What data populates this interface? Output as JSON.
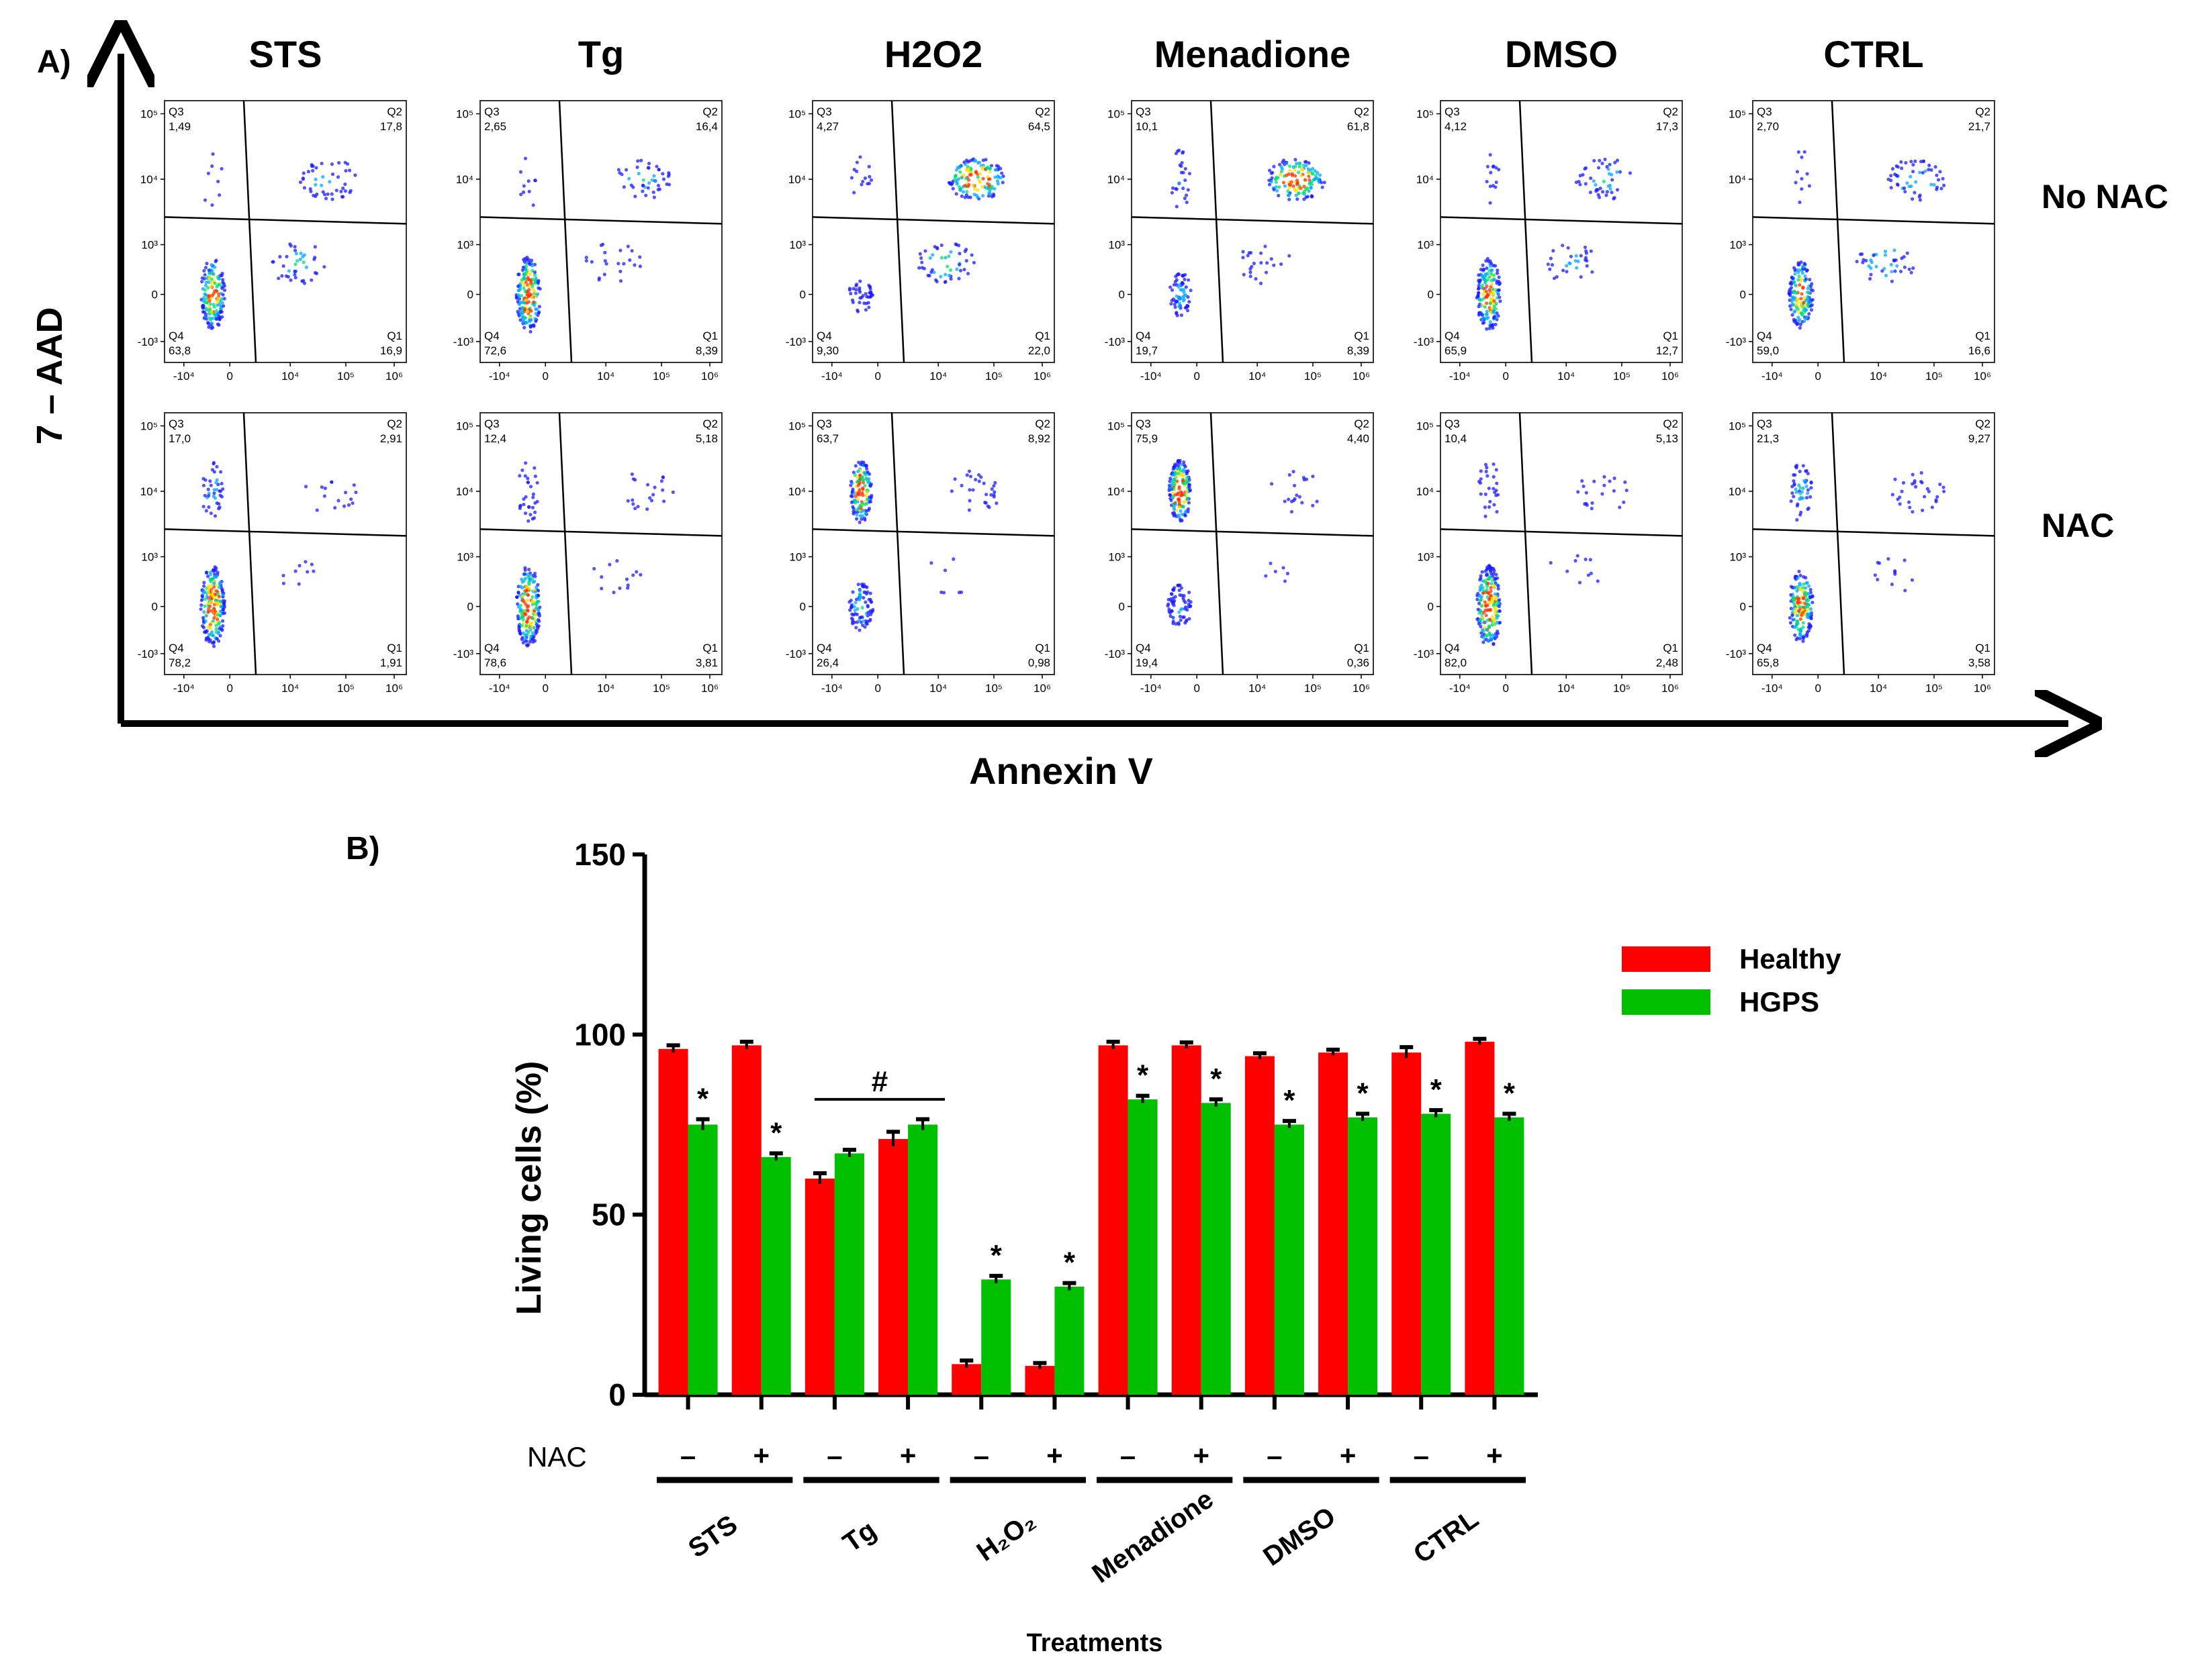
{
  "panel_a": {
    "label": "A)",
    "y_axis_label": "7 – AAD",
    "x_axis_label": "Annexin V",
    "row_labels": [
      "No NAC",
      "NAC"
    ],
    "treatments": [
      "STS",
      "Tg",
      "H2O2",
      "Menadione",
      "DMSO",
      "CTRL"
    ],
    "quadrant_names": [
      "Q3",
      "Q2",
      "Q4",
      "Q1"
    ],
    "x_ticks": [
      "-10⁴",
      "0",
      "10⁴",
      "10⁵",
      "10⁶"
    ],
    "y_ticks": [
      "10⁵",
      "10⁴",
      "10³",
      "0",
      "-10³"
    ],
    "quadrant_values": [
      [
        {
          "Q3": "1,49",
          "Q2": "17,8",
          "Q4": "63,8",
          "Q1": "16,9"
        },
        {
          "Q3": "2,65",
          "Q2": "16,4",
          "Q4": "72,6",
          "Q1": "8,39"
        },
        {
          "Q3": "4,27",
          "Q2": "64,5",
          "Q4": "9,30",
          "Q1": "22,0"
        },
        {
          "Q3": "10,1",
          "Q2": "61,8",
          "Q4": "19,7",
          "Q1": "8,39"
        },
        {
          "Q3": "4,12",
          "Q2": "17,3",
          "Q4": "65,9",
          "Q1": "12,7"
        },
        {
          "Q3": "2,70",
          "Q2": "21,7",
          "Q4": "59,0",
          "Q1": "16,6"
        }
      ],
      [
        {
          "Q3": "17,0",
          "Q2": "2,91",
          "Q4": "78,2",
          "Q1": "1,91"
        },
        {
          "Q3": "12,4",
          "Q2": "5,18",
          "Q4": "78,6",
          "Q1": "3,81"
        },
        {
          "Q3": "63,7",
          "Q2": "8,92",
          "Q4": "26,4",
          "Q1": "0,98"
        },
        {
          "Q3": "75,9",
          "Q2": "4,40",
          "Q4": "19,4",
          "Q1": "0,36"
        },
        {
          "Q3": "10,4",
          "Q2": "5,13",
          "Q4": "82,0",
          "Q1": "2,48"
        },
        {
          "Q3": "21,3",
          "Q2": "9,27",
          "Q4": "65,8",
          "Q1": "3,58"
        }
      ]
    ]
  },
  "chart_data": {
    "type": "bar",
    "panel_label": "B)",
    "title": "",
    "xlabel": "Treatments",
    "ylabel": "Living cells (%)",
    "ylim": [
      0,
      150
    ],
    "yticks": [
      "0",
      "50",
      "100",
      "150"
    ],
    "nac_row_label": "NAC",
    "nac_signs": [
      "–",
      "+",
      "–",
      "+",
      "–",
      "+",
      "–",
      "+",
      "–",
      "+",
      "–",
      "+"
    ],
    "groups": [
      "STS",
      "Tg",
      "H2O2",
      "Menadione",
      "DMSO",
      "CTRL"
    ],
    "group_label_display": [
      "STS",
      "Tg",
      "H₂O₂",
      "Menadione",
      "DMSO",
      "CTRL"
    ],
    "bracket_annotation": "#",
    "significance_marker": "*",
    "legend_position": "top-right",
    "series": [
      {
        "name": "Healthy",
        "color": "#ff0000",
        "values": [
          96,
          97,
          60,
          71,
          8.5,
          8,
          97,
          97,
          94,
          95,
          95,
          98
        ],
        "errors": [
          1,
          1,
          1.5,
          2,
          1,
          0.8,
          1,
          0.8,
          0.8,
          0.8,
          1.5,
          0.8
        ]
      },
      {
        "name": "HGPS",
        "color": "#00c000",
        "values": [
          75,
          66,
          67,
          75,
          32,
          30,
          82,
          81,
          75,
          77,
          78,
          77
        ],
        "errors": [
          1.5,
          1,
          1,
          1.5,
          1,
          1,
          1,
          1,
          1,
          1,
          1,
          1
        ]
      }
    ],
    "significant": [
      [
        false,
        false,
        false,
        false,
        false,
        false,
        false,
        false,
        false,
        false,
        false,
        false
      ],
      [
        true,
        true,
        false,
        false,
        true,
        true,
        true,
        true,
        true,
        true,
        true,
        true
      ]
    ]
  }
}
